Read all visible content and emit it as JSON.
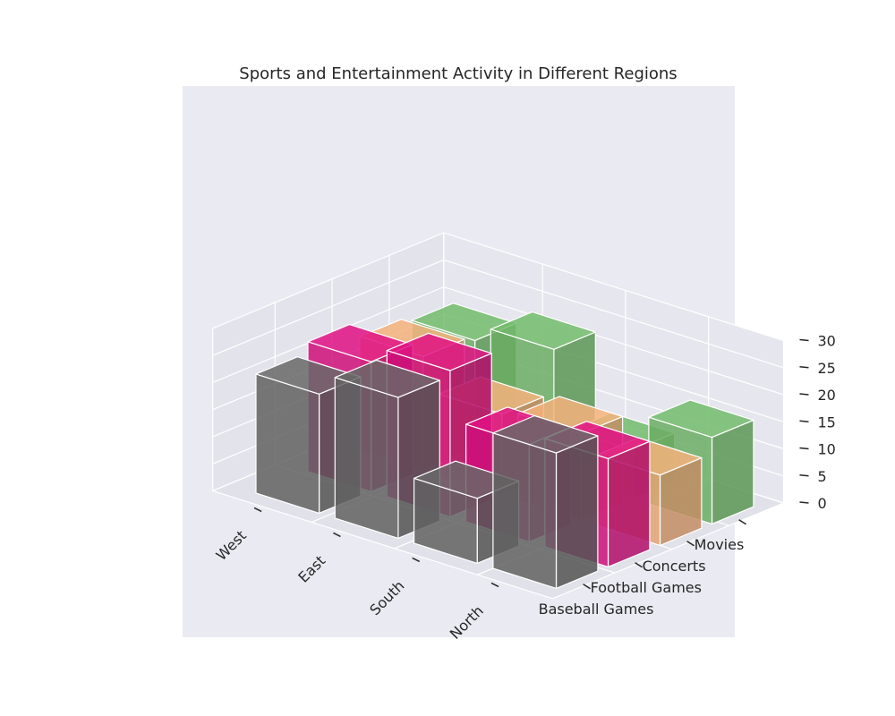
{
  "chart_data": {
    "type": "bar3d",
    "title": "Sports and Entertainment Activity in Different Regions",
    "regions": [
      "West",
      "East",
      "South",
      "North"
    ],
    "activities": [
      "Baseball Games",
      "Football Games",
      "Concerts",
      "Movies"
    ],
    "zlim": [
      0,
      30
    ],
    "z_ticks": [
      0,
      5,
      10,
      15,
      20,
      25,
      30
    ],
    "series": [
      {
        "name": "Baseball Games",
        "color": "#616161",
        "values": [
          22,
          26,
          12,
          25
        ]
      },
      {
        "name": "Football Games",
        "color": "#cf0f7a",
        "values": [
          24,
          27,
          18,
          20
        ]
      },
      {
        "name": "Concerts",
        "color": "#e3a474",
        "values": [
          21,
          15,
          16,
          13
        ]
      },
      {
        "name": "Movies",
        "color": "#6aad63",
        "values": [
          20,
          23,
          9,
          16
        ]
      }
    ],
    "grid": true,
    "pane_color": "#eaeaf2"
  }
}
